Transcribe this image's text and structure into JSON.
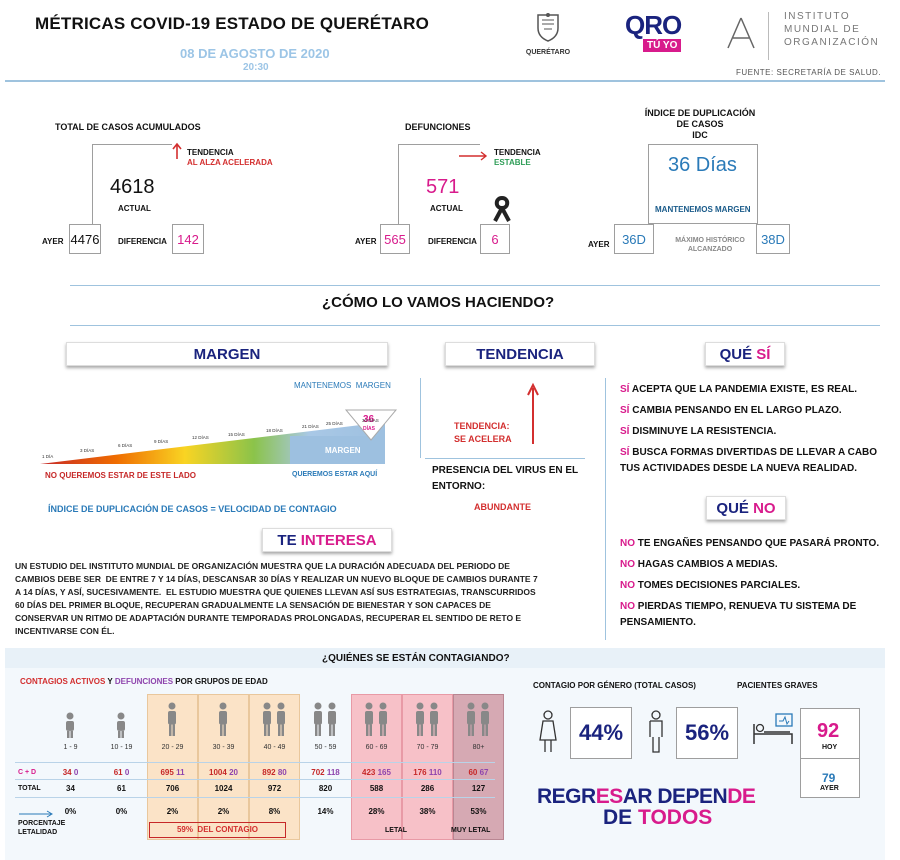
{
  "header": {
    "title": "MÉTRICAS COVID-19 ESTADO DE QUERÉTARO",
    "date": "08 DE AGOSTO DE 2020",
    "time": "20:30",
    "logo_qro_small": "QUERÉTARO",
    "logo_qro_big": "QRO",
    "logo_qro_sub": "TÚ YO",
    "institute_line1": "INSTITUTO",
    "institute_line2": "MUNDIAL DE",
    "institute_line3": "ORGANIZACIÓN",
    "source": "FUENTE: SECRETARÍA DE SALUD."
  },
  "cases": {
    "title": "TOTAL DE CASOS ACUMULADOS",
    "trend_label": "TENDENCIA",
    "trend_value": "AL ALZA ACELERADA",
    "current": "4618",
    "current_label": "ACTUAL",
    "yesterday_label": "AYER",
    "yesterday": "4476",
    "diff_label": "DIFERENCIA",
    "diff": "142"
  },
  "deaths": {
    "title": "DEFUNCIONES",
    "trend_label": "TENDENCIA",
    "trend_value": "ESTABLE",
    "current": "571",
    "current_label": "ACTUAL",
    "yesterday_label": "AYER",
    "yesterday": "565",
    "diff_label": "DIFERENCIA",
    "diff": "6"
  },
  "idc": {
    "title1": "ÍNDICE DE DUPLICACIÓN",
    "title2": "DE CASOS",
    "title3": "IDC",
    "value": "36 Días",
    "message": "MANTENEMOS MARGEN",
    "yesterday_label": "AYER",
    "yesterday": "36D",
    "max_label1": "MÁXIMO HISTÓRICO",
    "max_label2": "ALCANZADO",
    "max": "38D"
  },
  "how": {
    "title": "¿CÓMO LO VAMOS HACIENDO?",
    "margin_tag": "MARGEN",
    "trend_tag": "TENDENCIA",
    "yes_tag_a": "QUÉ ",
    "yes_tag_b": "SÍ",
    "keep_margin": "MANTENEMOS  MARGEN",
    "marker_value": "36",
    "marker_unit": "DÍAS",
    "bar_label": "MARGEN",
    "day_labels": [
      "1 DÍA",
      "3 DÍAS",
      "6 DÍAS",
      "9 DÍAS",
      "12 DÍAS",
      "15 DÍAS",
      "18 DÍAS",
      "21 DÍAS",
      "25 DÍAS",
      "30 DÍAS"
    ],
    "not_here": "NO QUEREMOS ESTAR DE ESTE LADO",
    "want_here": "QUEREMOS ESTAR AQUÍ",
    "formula": "ÍNDICE DE DUPLICACIÓN DE CASOS = VELOCIDAD DE CONTAGIO",
    "trend_text1": "TENDENCIA:",
    "trend_text2": "SE ACELERA",
    "presence1": "PRESENCIA DEL VIRUS EN EL",
    "presence2": "ENTORNO:",
    "presence_value": "ABUNDANTE"
  },
  "yes_list": [
    {
      "k": "SÍ",
      "t": " ACEPTA QUE LA PANDEMIA EXISTE, ES REAL."
    },
    {
      "k": "SÍ",
      "t": " CAMBIA PENSANDO EN EL LARGO PLAZO."
    },
    {
      "k": "SÍ",
      "t": " DISMINUYE LA RESISTENCIA."
    },
    {
      "k": "SÍ",
      "t": " BUSCA FORMAS DIVERTIDAS DE LLEVAR A CABO"
    },
    {
      "k": "",
      "t": "TUS ACTIVIDADES DESDE LA NUEVA REALIDAD."
    }
  ],
  "no_tag_a": "QUÉ ",
  "no_tag_b": "NO",
  "no_list": [
    {
      "k": "NO",
      "t": " TE ENGAÑES PENSANDO QUE PASARÁ PRONTO."
    },
    {
      "k": "NO",
      "t": " HAGAS CAMBIOS A MEDIAS."
    },
    {
      "k": "NO",
      "t": " TOMES DECISIONES PARCIALES."
    },
    {
      "k": "NO",
      "t": " PIERDAS TIEMPO, RENUEVA TU SISTEMA DE"
    },
    {
      "k": "",
      "t": "PENSAMIENTO."
    }
  ],
  "interest": {
    "tag_a": "TE ",
    "tag_b": "INTERESA",
    "lines": [
      "UN ESTUDIO DEL INSTITUTO MUNDIAL DE ORGANIZACIÓN MUESTRA QUE LA DURACIÓN ADECUADA DEL PERIODO DE",
      "CAMBIOS DEBE SER  DE ENTRE 7 Y 14 DÍAS, DESCANSAR 30 DÍAS Y REALIZAR UN NUEVO BLOQUE DE CAMBIOS DURANTE 7",
      "A 14 DÍAS, Y ASÍ, SUCESIVAMENTE.  EL ESTUDIO MUESTRA QUE QUIENES LLEVAN ASÍ SUS ESTRATEGIAS, TRANSCURRIDOS",
      "60 DÍAS DEL PRIMER BLOQUE, RECUPERAN GRADUALMENTE LA SENSACIÓN DE BIENESTAR Y SON CAPACES DE",
      "CONSERVAR UN RITMO DE ADAPTACIÓN DURANTE TEMPORADAS PROLONGADAS, RECUPERAR EL SENTIDO DE RETO E",
      "INCENTIVARSE CON ÉL."
    ]
  },
  "who": {
    "title": "¿Quiénes se están contagiando?",
    "legend_a": "CONTAGIOS ACTIVOS",
    "legend_y": " Y ",
    "legend_b": "DEFUNCIONES",
    "legend_c": " POR GRUPOS DE EDAD",
    "row_cd": "C + D",
    "row_total": "TOTAL",
    "row_pct1": "PORCENTAJE",
    "row_pct2": "LETALIDAD",
    "groups": [
      {
        "age": "1 - 9",
        "active": "34",
        "deaths": "0",
        "total": "34",
        "pct": "0%"
      },
      {
        "age": "10 - 19",
        "active": "61",
        "deaths": "0",
        "total": "61",
        "pct": "0%"
      },
      {
        "age": "20 - 29",
        "active": "695",
        "deaths": "11",
        "total": "706",
        "pct": "2%"
      },
      {
        "age": "30 - 39",
        "active": "1004",
        "deaths": "20",
        "total": "1024",
        "pct": "2%"
      },
      {
        "age": "40 - 49",
        "active": "892",
        "deaths": "80",
        "total": "972",
        "pct": "8%"
      },
      {
        "age": "50 - 59",
        "active": "702",
        "deaths": "118",
        "total": "820",
        "pct": "14%"
      },
      {
        "age": "60 - 69",
        "active": "423",
        "deaths": "165",
        "total": "588",
        "pct": "28%"
      },
      {
        "age": "70 - 79",
        "active": "176",
        "deaths": "110",
        "total": "286",
        "pct": "38%"
      },
      {
        "age": "80+",
        "active": "60",
        "deaths": "67",
        "total": "127",
        "pct": "53%"
      }
    ],
    "contagion_label": "59%  DEL CONTAGIO",
    "lethal_label": "LETAL",
    "very_lethal_label": "MUY LETAL",
    "gender_title": "CONTAGIO POR GÉNERO (TOTAL CASOS)",
    "female_pct": "44%",
    "male_pct": "56%",
    "severe_title": "PACIENTES GRAVES",
    "severe_today": "92",
    "severe_today_label": "HOY",
    "severe_yesterday": "79",
    "severe_yesterday_label": "AYER",
    "slogan1_a": "REGR",
    "slogan1_b": "ES",
    "slogan1_c": "AR DEPEN",
    "slogan1_d": "DE",
    "slogan2_a": "DE ",
    "slogan2_b": "TODOS"
  }
}
